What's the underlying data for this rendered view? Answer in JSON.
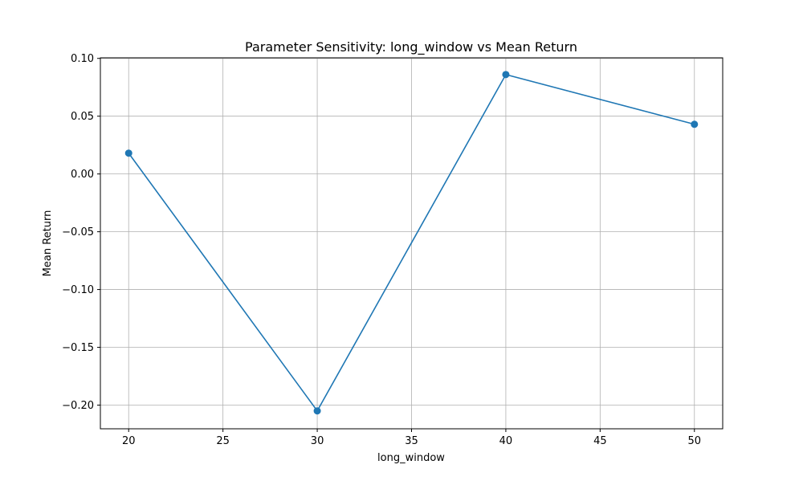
{
  "chart_data": {
    "type": "line",
    "title": "Parameter Sensitivity: long_window vs Mean Return",
    "xlabel": "long_window",
    "ylabel": "Mean Return",
    "x": [
      20,
      30,
      40,
      50
    ],
    "series": [
      {
        "values": [
          0.018,
          -0.205,
          0.086,
          0.043
        ]
      }
    ],
    "xlim": [
      18.5,
      51.5
    ],
    "ylim": [
      -0.2205,
      0.1005
    ],
    "xticks": [
      20,
      25,
      30,
      35,
      40,
      45,
      50
    ],
    "xtick_labels": [
      "20",
      "25",
      "30",
      "35",
      "40",
      "45",
      "50"
    ],
    "yticks": [
      0.1,
      0.05,
      0.0,
      -0.05,
      -0.1,
      -0.15,
      -0.2
    ],
    "ytick_labels": [
      "0.10",
      "0.05",
      "0.00",
      "−0.05",
      "−0.10",
      "−0.15",
      "−0.20"
    ],
    "grid": true,
    "markers": true,
    "colors": {
      "series": "#1f77b4",
      "grid": "#b0b0b0",
      "axes": "#000000"
    }
  }
}
